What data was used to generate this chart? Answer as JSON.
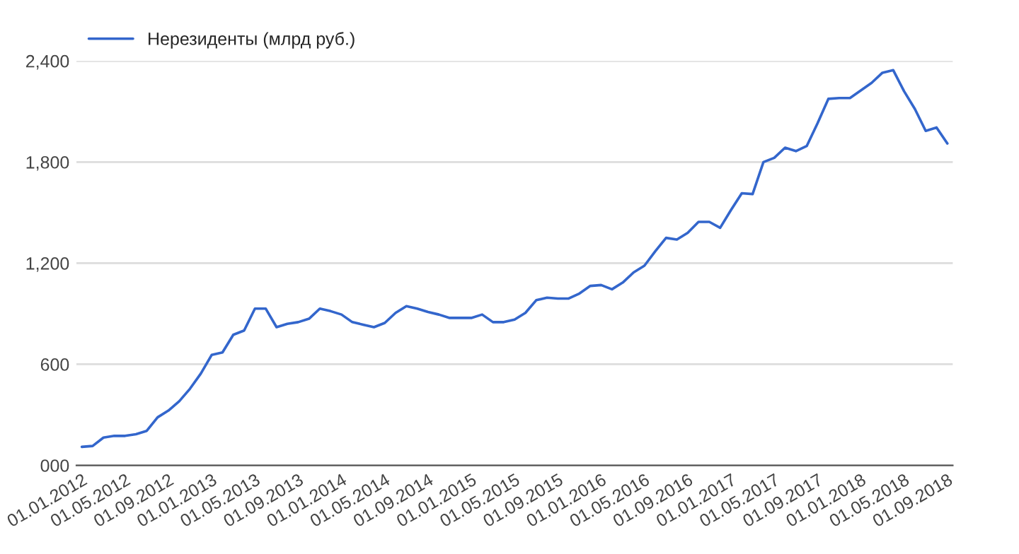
{
  "chart_data": {
    "type": "line",
    "categories": [
      "01.01.2012",
      null,
      null,
      null,
      "01.05.2012",
      null,
      null,
      null,
      "01.09.2012",
      null,
      null,
      null,
      "01.01.2013",
      null,
      null,
      null,
      "01.05.2013",
      null,
      null,
      null,
      "01.09.2013",
      null,
      null,
      null,
      "01.01.2014",
      null,
      null,
      null,
      "01.05.2014",
      null,
      null,
      null,
      "01.09.2014",
      null,
      null,
      null,
      "01.01.2015",
      null,
      null,
      null,
      "01.05.2015",
      null,
      null,
      null,
      "01.09.2015",
      null,
      null,
      null,
      "01.01.2016",
      null,
      null,
      null,
      "01.05.2016",
      null,
      null,
      null,
      "01.09.2016",
      null,
      null,
      null,
      "01.01.2017",
      null,
      null,
      null,
      "01.05.2017",
      null,
      null,
      null,
      "01.09.2017",
      null,
      null,
      null,
      "01.01.2018",
      null,
      null,
      null,
      "01.05.2018",
      null,
      null,
      null,
      "01.09.2018"
    ],
    "series": [
      {
        "name": "Нерезиденты (млрд руб.)",
        "color": "#3366cc",
        "values": [
          110,
          115,
          165,
          175,
          175,
          185,
          205,
          285,
          325,
          380,
          455,
          545,
          655,
          670,
          775,
          800,
          930,
          930,
          820,
          840,
          850,
          870,
          930,
          915,
          895,
          850,
          835,
          820,
          845,
          905,
          945,
          930,
          910,
          895,
          875,
          875,
          875,
          895,
          850,
          850,
          865,
          905,
          980,
          995,
          990,
          990,
          1020,
          1065,
          1070,
          1045,
          1085,
          1145,
          1185,
          1270,
          1350,
          1340,
          1380,
          1445,
          1445,
          1410,
          1515,
          1615,
          1610,
          1800,
          1825,
          1885,
          1865,
          1895,
          2030,
          2175,
          2180,
          2180,
          2225,
          2270,
          2330,
          2345,
          2220,
          2115,
          1985,
          2005,
          1910
        ]
      }
    ],
    "ylim": [
      0,
      2400
    ],
    "yticks": [
      {
        "value": 0,
        "label": "000"
      },
      {
        "value": 600,
        "label": "600"
      },
      {
        "value": 1200,
        "label": "1,200"
      },
      {
        "value": 1800,
        "label": "1,800"
      },
      {
        "value": 2400,
        "label": "2,400"
      }
    ],
    "grid": "y",
    "legend": "top left",
    "line_style": "solid",
    "marker": "none"
  }
}
